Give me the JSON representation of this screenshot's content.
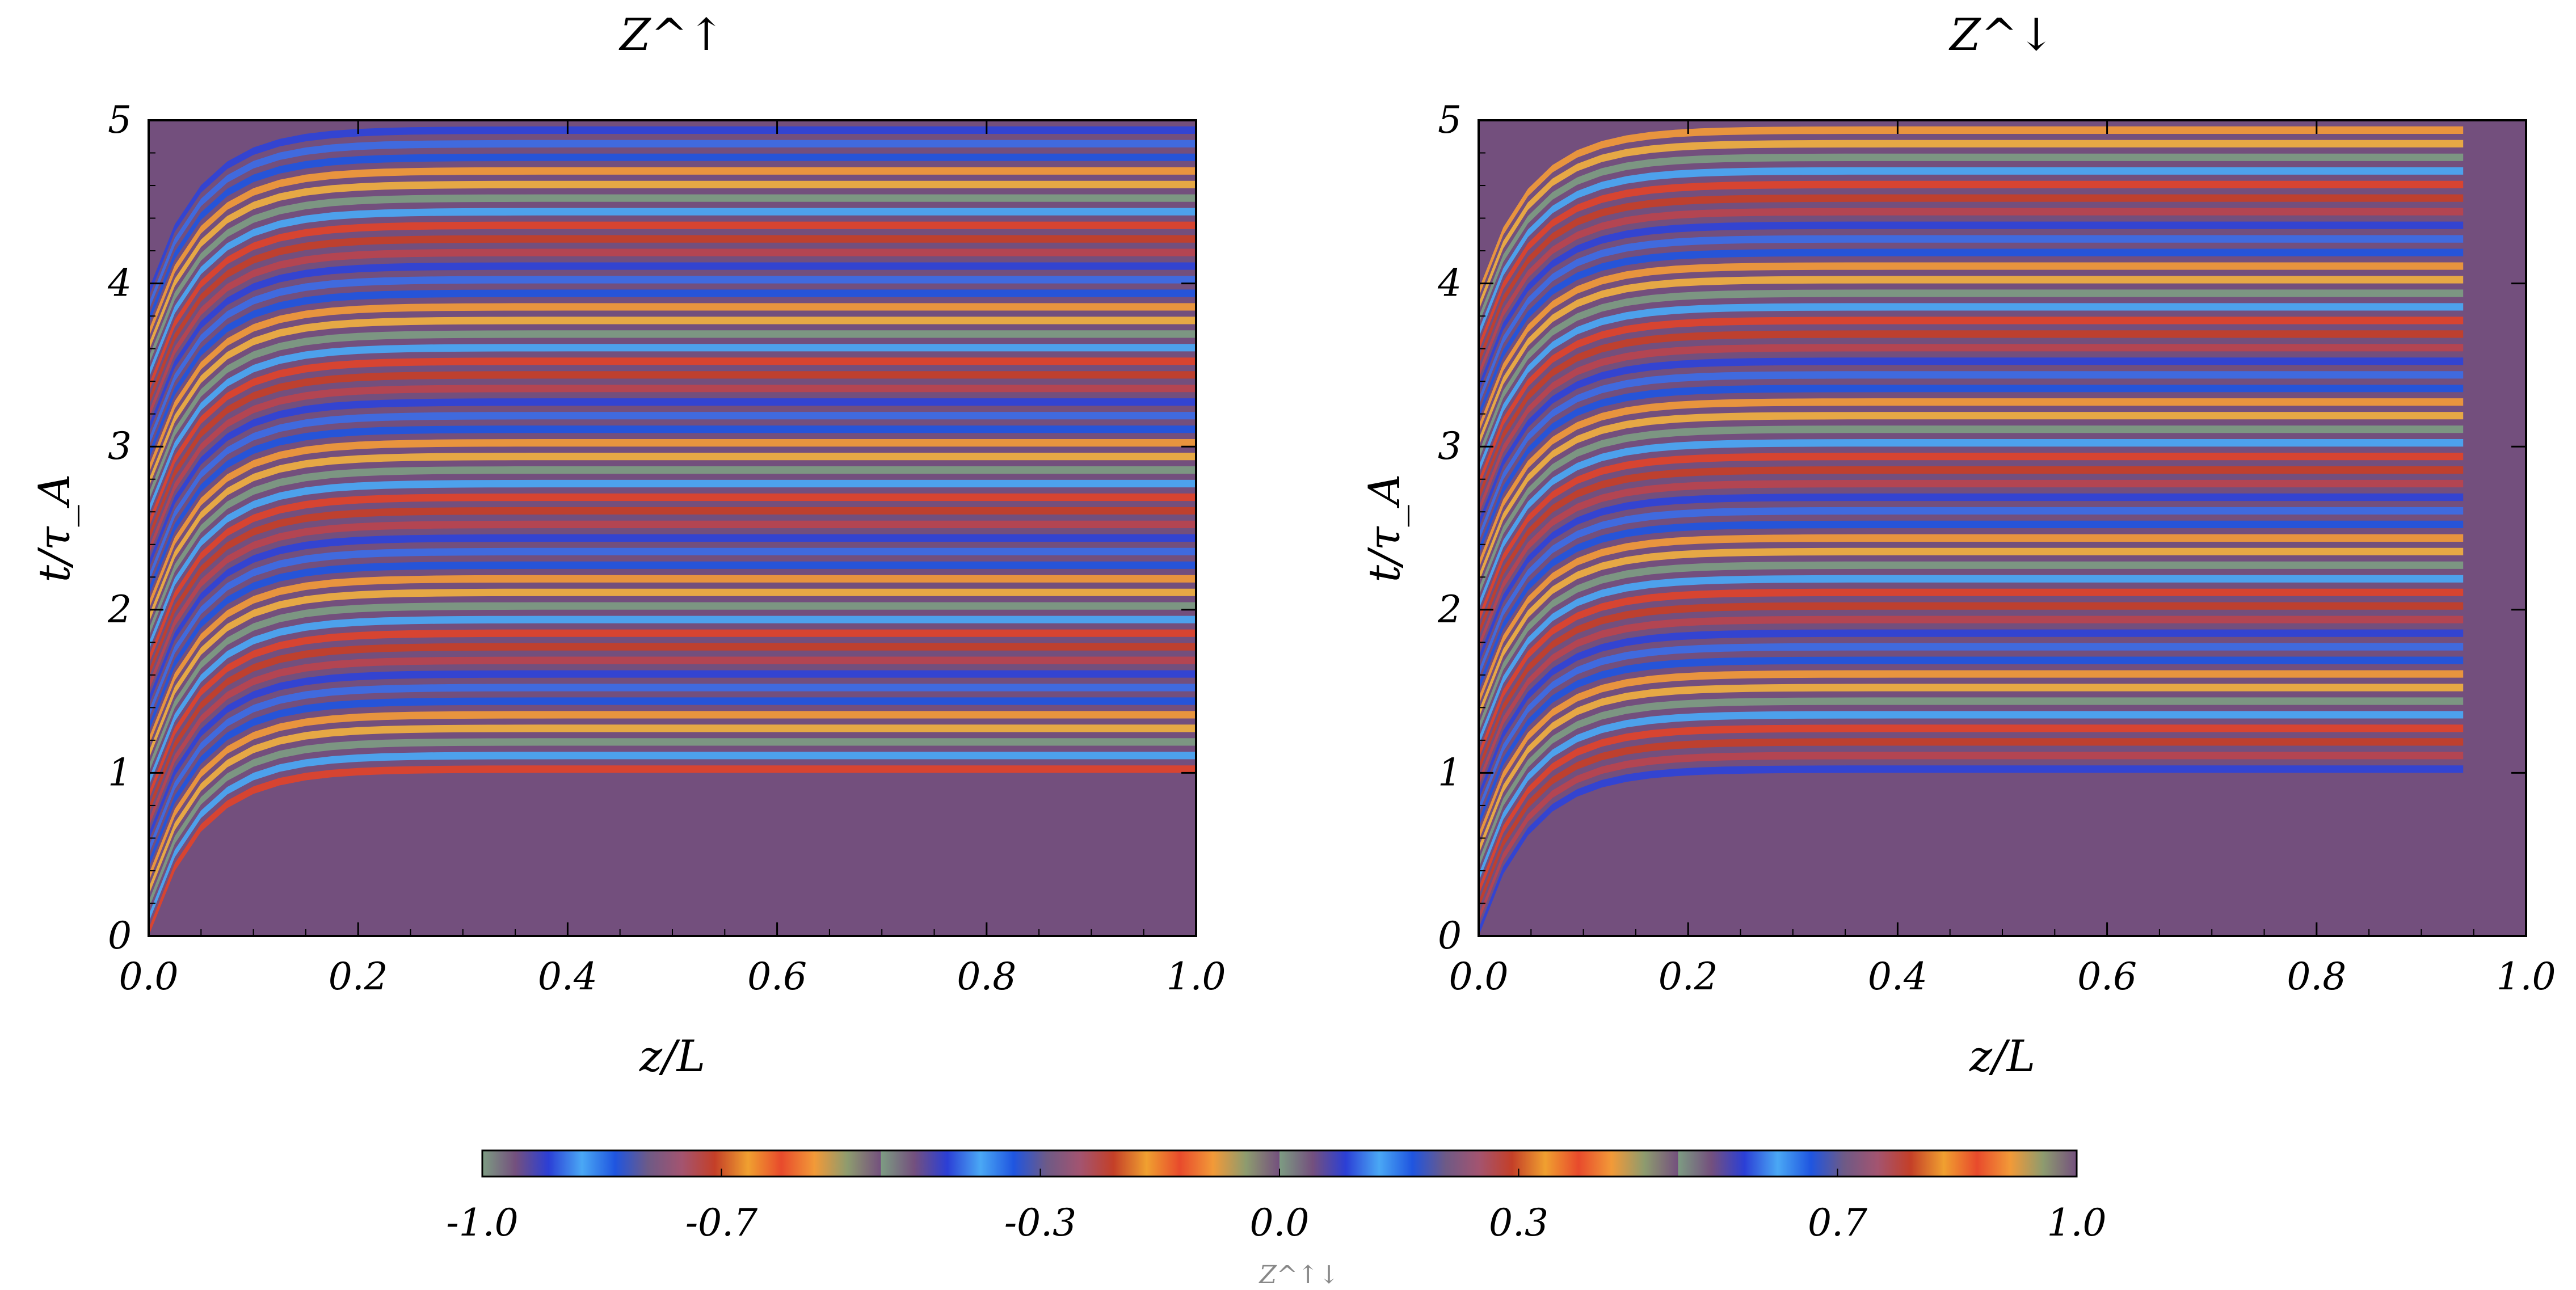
{
  "chart_data": {
    "type": "heatmap",
    "panels": [
      {
        "id": "up",
        "title": "Z^↑",
        "xlabel": "z/L",
        "ylabel": "t/τ_A",
        "xlim": [
          0.0,
          1.0
        ],
        "ylim": [
          0,
          5
        ],
        "xticks": [
          "0.0",
          "0.2",
          "0.4",
          "0.6",
          "0.8",
          "1.0"
        ],
        "yticks": [
          "0",
          "1",
          "2",
          "3",
          "4",
          "5"
        ],
        "front_arrival_time": 1.0,
        "field_extent_z": 1.0,
        "band_count": 48
      },
      {
        "id": "down",
        "title": "Z^↓",
        "xlabel": "z/L",
        "ylabel": "t/τ_A",
        "xlim": [
          0.0,
          1.0
        ],
        "ylim": [
          0,
          5
        ],
        "xticks": [
          "0.0",
          "0.2",
          "0.4",
          "0.6",
          "0.8",
          "1.0"
        ],
        "yticks": [
          "0",
          "1",
          "2",
          "3",
          "4",
          "5"
        ],
        "front_arrival_time": 1.0,
        "field_extent_z": 0.94,
        "band_count": 48
      }
    ],
    "colorbar": {
      "label": "Z^↑↓",
      "range": [
        -1.0,
        1.0
      ],
      "ticks": [
        "-1.0",
        "-0.7",
        "-0.3",
        "0.0",
        "0.3",
        "0.7",
        "1.0"
      ],
      "colormap": [
        "#7d9c82",
        "#74507e",
        "#2b3fd6",
        "#4aa8f5",
        "#1f55e0",
        "#6e5a86",
        "#a35470",
        "#c43f28",
        "#f0a030",
        "#e84a2c",
        "#f29a38",
        "#8d9b6f",
        "#74507e"
      ]
    },
    "background_color": "#734f7d"
  }
}
